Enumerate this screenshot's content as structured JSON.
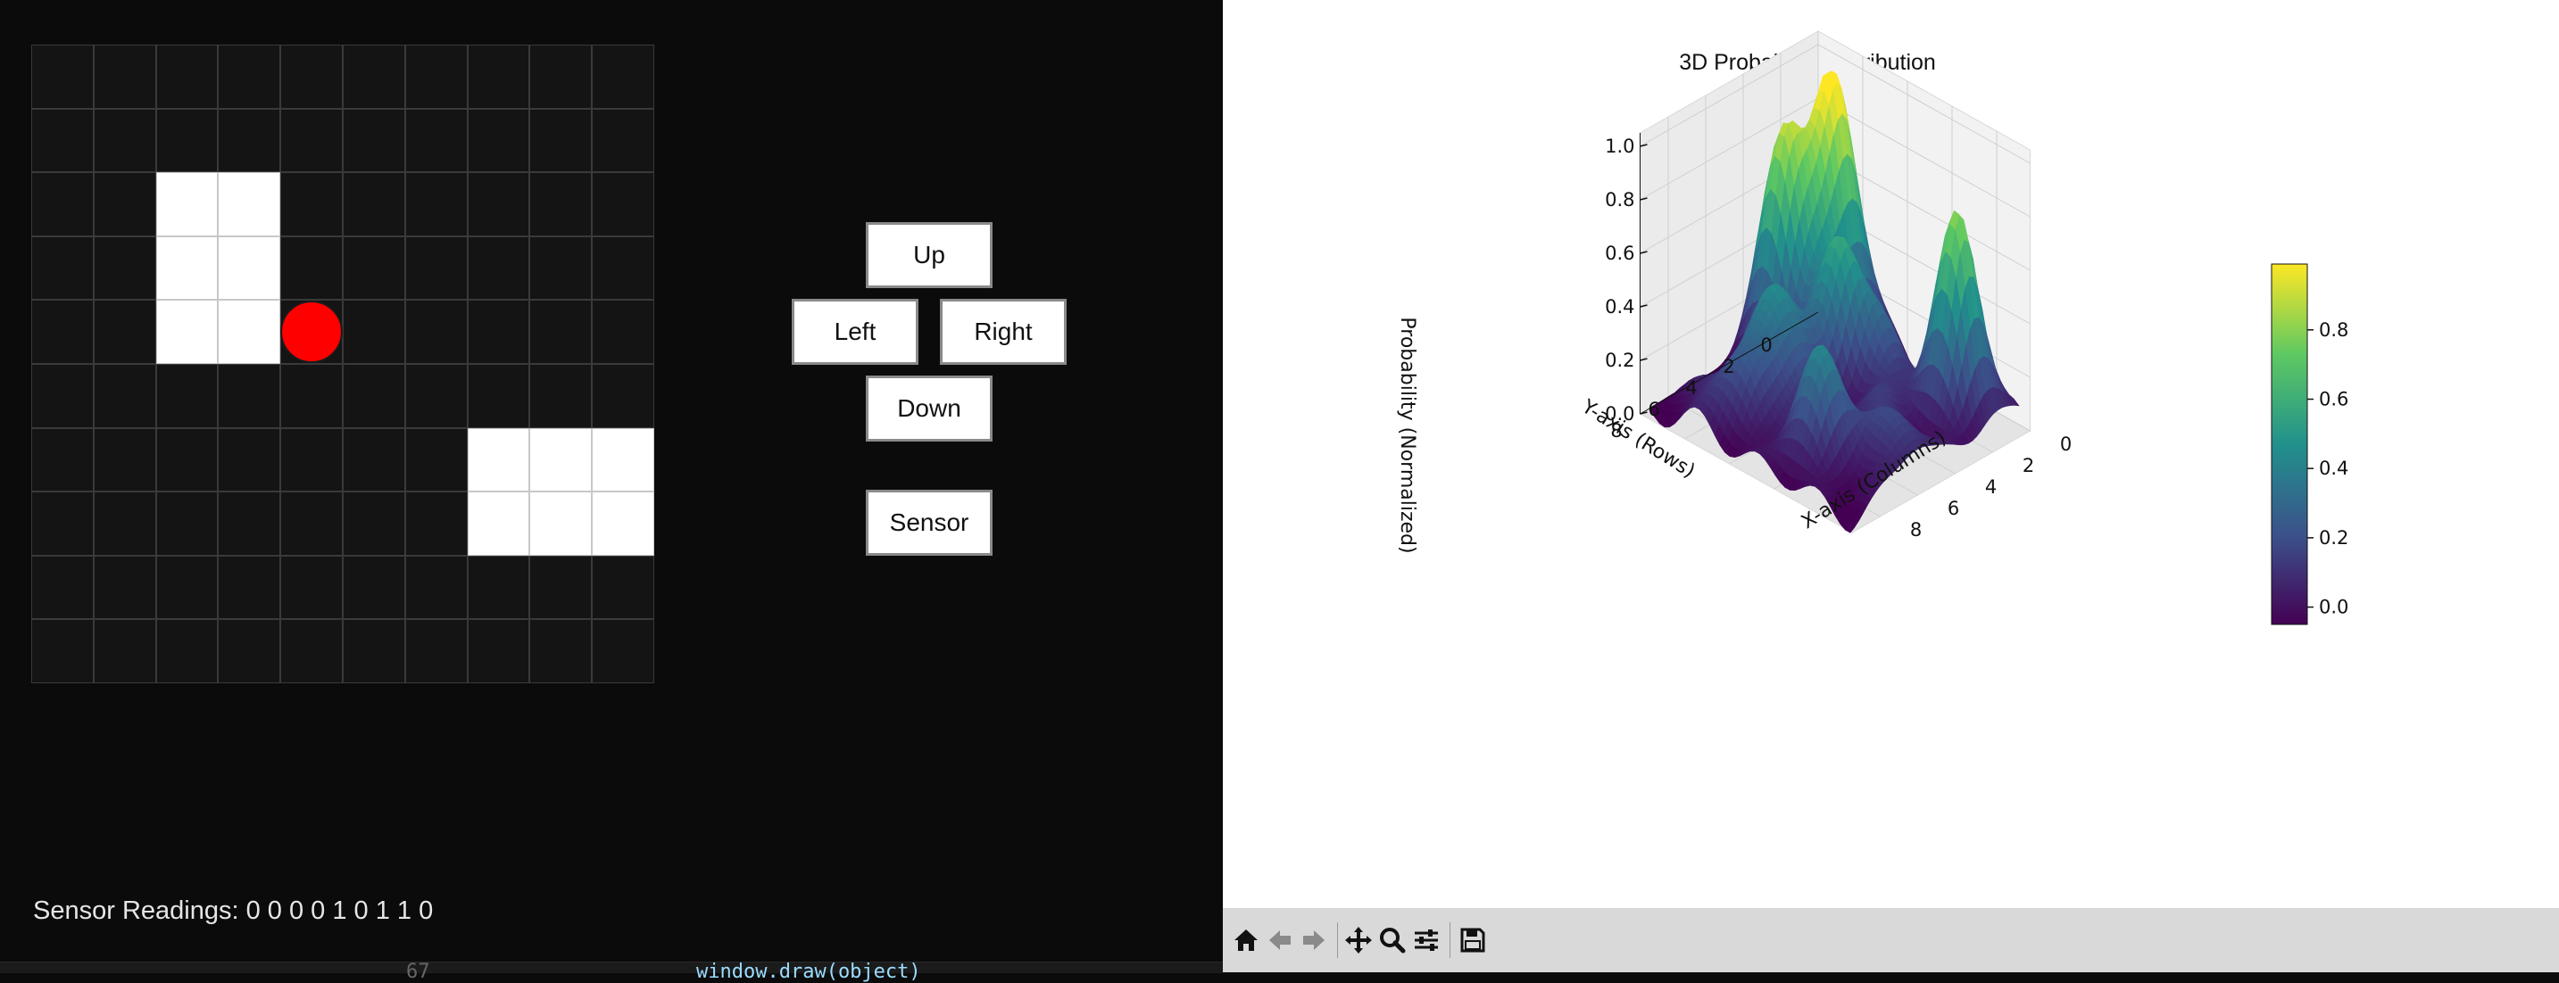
{
  "grid": {
    "rows": 10,
    "cols": 10,
    "walls": [
      [
        2,
        2
      ],
      [
        2,
        3
      ],
      [
        3,
        2
      ],
      [
        3,
        3
      ],
      [
        4,
        2
      ],
      [
        4,
        3
      ],
      [
        6,
        7
      ],
      [
        6,
        8
      ],
      [
        6,
        9
      ],
      [
        7,
        7
      ],
      [
        7,
        8
      ],
      [
        7,
        9
      ]
    ],
    "robot": {
      "row": 4,
      "col": 4,
      "color": "#ff0000"
    },
    "cell_color": "#141414",
    "wall_color": "#ffffff"
  },
  "controls": {
    "up": "Up",
    "left": "Left",
    "right": "Right",
    "down": "Down",
    "sensor": "Sensor"
  },
  "sensor": {
    "label": "Sensor Readings:",
    "values": "0 0 0 0 1 0 1 1 0"
  },
  "editor": {
    "line_number": "67",
    "code": "window.draw(object)"
  },
  "plot": {
    "title": "3D Probability Distribution",
    "z_label": "Probability (Normalized)",
    "y_label": "Y-axis (Rows)",
    "x_label": "X-axis (Columns)",
    "z_ticks": [
      "0.0",
      "0.2",
      "0.4",
      "0.6",
      "0.8",
      "1.0"
    ],
    "y_ticks": [
      "0",
      "2",
      "4",
      "6",
      "8"
    ],
    "x_ticks": [
      "0",
      "2",
      "4",
      "6",
      "8"
    ],
    "colorbar_ticks": [
      "0.0",
      "0.2",
      "0.4",
      "0.6",
      "0.8"
    ],
    "colormap": "viridis"
  },
  "toolbar": {
    "icons": [
      "home-icon",
      "back-arrow-icon",
      "forward-arrow-icon",
      "pan-icon",
      "zoom-icon",
      "configure-icon",
      "save-icon"
    ]
  }
}
